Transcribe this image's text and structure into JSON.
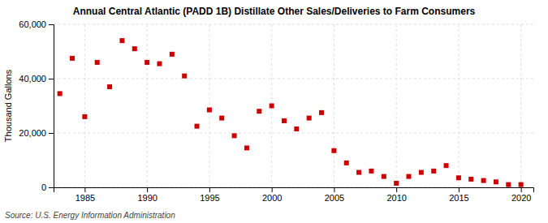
{
  "chart_data": {
    "type": "scatter",
    "title": "Annual Central Atlantic (PADD 1B) Distillate Other Sales/Deliveries to Farm Consumers",
    "ylabel": "Thousand Gallons",
    "source": "Source: U.S. Energy Information Administration",
    "x": [
      1983,
      1984,
      1985,
      1986,
      1987,
      1988,
      1989,
      1990,
      1991,
      1992,
      1993,
      1994,
      1995,
      1996,
      1997,
      1998,
      1999,
      2000,
      2001,
      2002,
      2003,
      2004,
      2005,
      2006,
      2007,
      2008,
      2009,
      2010,
      2011,
      2012,
      2013,
      2014,
      2015,
      2016,
      2017,
      2018,
      2019,
      2020
    ],
    "values": [
      34500,
      47500,
      26000,
      46000,
      37000,
      54000,
      51000,
      46000,
      45500,
      49000,
      41000,
      22500,
      28500,
      25500,
      19000,
      14500,
      28000,
      30000,
      24500,
      21500,
      25500,
      27500,
      13500,
      9000,
      5500,
      6000,
      4000,
      1500,
      4000,
      5500,
      6000,
      8000,
      3500,
      3000,
      2500,
      2000,
      1000,
      1000
    ],
    "color": "#cc0000",
    "marker": "square",
    "xlim": [
      1982.5,
      2021
    ],
    "xticks": [
      1985,
      1990,
      1995,
      2000,
      2005,
      2010,
      2015,
      2020
    ],
    "ylim": [
      0,
      60000
    ],
    "yticks": [
      0,
      {
        "value": 20000,
        "label": "20,000"
      },
      {
        "value": 40000,
        "label": "40,000"
      },
      {
        "value": 60000,
        "label": "60,000"
      }
    ],
    "grid": true
  }
}
